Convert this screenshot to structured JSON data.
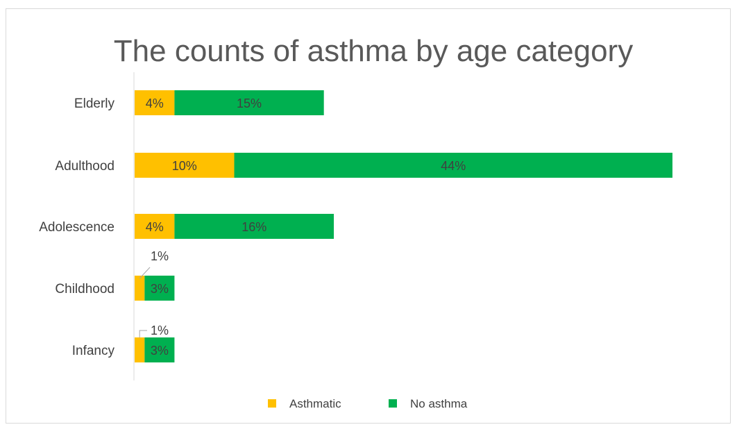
{
  "chart_data": {
    "type": "bar",
    "orientation": "horizontal",
    "stacked": true,
    "title": "The counts of asthma by age category",
    "categories": [
      "Elderly",
      "Adulthood",
      "Adolescence",
      "Childhood",
      "Infancy"
    ],
    "series": [
      {
        "name": "Asthmatic",
        "color": "#ffc000",
        "values": [
          4,
          10,
          4,
          1,
          1
        ],
        "labels": [
          "4%",
          "10%",
          "4%",
          "1%",
          "1%"
        ]
      },
      {
        "name": "No asthma",
        "color": "#00b050",
        "values": [
          15,
          44,
          16,
          3,
          3
        ],
        "labels": [
          "15%",
          "44%",
          "16%",
          "3%",
          "3%"
        ]
      }
    ],
    "xlim": [
      0,
      54
    ],
    "x_axis_visible": false,
    "grid": false,
    "legend": "bottom"
  }
}
